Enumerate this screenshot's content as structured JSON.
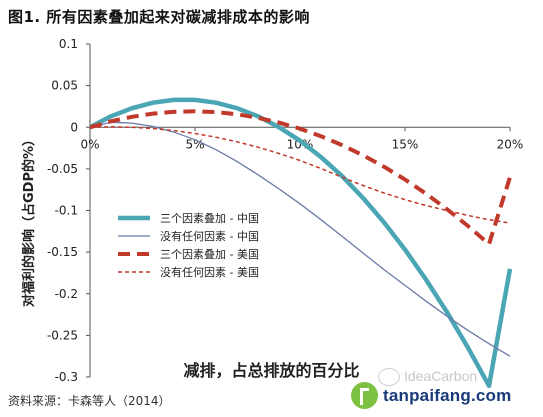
{
  "page": {
    "figure_title": "图1.  所有因素叠加起来对碳减排成本的影响",
    "source": "资料来源：卡森等人（2014）",
    "watermark_site": "tanpaifang.com",
    "watermark_faint": "IdeaCarbon"
  },
  "chart_data": {
    "type": "line",
    "xlabel": "减排，占总排放的百分比",
    "ylabel": "对福利的影响（占GDP的%）",
    "xlim": [
      0,
      20
    ],
    "ylim": [
      -0.3,
      0.1
    ],
    "x_ticks": [
      0,
      5,
      10,
      15,
      20
    ],
    "x_tick_labels": [
      "0%",
      "5%",
      "10%",
      "15%",
      "20%"
    ],
    "y_ticks": [
      0.1,
      0.05,
      0,
      -0.05,
      -0.1,
      -0.15,
      -0.2,
      -0.25,
      -0.3
    ],
    "y_tick_labels": [
      "0.1",
      "0.05",
      "0",
      "-0.05",
      "-0.1",
      "-0.15",
      "-0.2",
      "-0.25",
      "-0.3"
    ],
    "grid": false,
    "legend_position": "lower-left",
    "x": [
      0,
      1,
      2,
      3,
      4,
      5,
      6,
      7,
      8,
      9,
      10,
      11,
      12,
      13,
      14,
      15,
      16,
      17,
      18,
      19,
      20
    ],
    "series": [
      {
        "name": "三个因素叠加 - 中国",
        "color": "#4aa6b5",
        "style": "solid-thick",
        "values": [
          0,
          0.0131,
          0.0229,
          0.0295,
          0.0328,
          0.0328,
          0.0295,
          0.0229,
          0.0131,
          0.0001,
          -0.0162,
          -0.0358,
          -0.0587,
          -0.0849,
          -0.1143,
          -0.147,
          -0.183,
          -0.2222,
          -0.2648,
          -0.3106,
          -0.17
        ]
      },
      {
        "name": "没有任何因素 - 中国",
        "color": "#6b7aa8",
        "style": "solid-thin",
        "values": [
          0,
          0.006,
          0.005,
          0.001,
          -0.006,
          -0.015,
          -0.027,
          -0.041,
          -0.057,
          -0.074,
          -0.092,
          -0.111,
          -0.131,
          -0.151,
          -0.171,
          -0.19,
          -0.209,
          -0.227,
          -0.244,
          -0.26,
          -0.275
        ]
      },
      {
        "name": "三个因素叠加 - 美国",
        "color": "#c0392b",
        "style": "dashed-thick",
        "values": [
          0,
          0.0071,
          0.0126,
          0.0164,
          0.0186,
          0.0192,
          0.0182,
          0.0156,
          0.0114,
          0.0056,
          -0.0018,
          -0.0108,
          -0.0214,
          -0.0336,
          -0.0474,
          -0.0628,
          -0.0798,
          -0.0984,
          -0.1186,
          -0.1404,
          -0.06
        ]
      },
      {
        "name": "没有任何因素 - 美国",
        "color": "#c0392b",
        "style": "dotted-thin",
        "values": [
          0,
          0.0005,
          0.0,
          -0.0015,
          -0.004,
          -0.0075,
          -0.012,
          -0.0175,
          -0.024,
          -0.0315,
          -0.04,
          -0.0495,
          -0.06,
          -0.07,
          -0.079,
          -0.087,
          -0.094,
          -0.1,
          -0.106,
          -0.111,
          -0.115
        ]
      }
    ]
  }
}
